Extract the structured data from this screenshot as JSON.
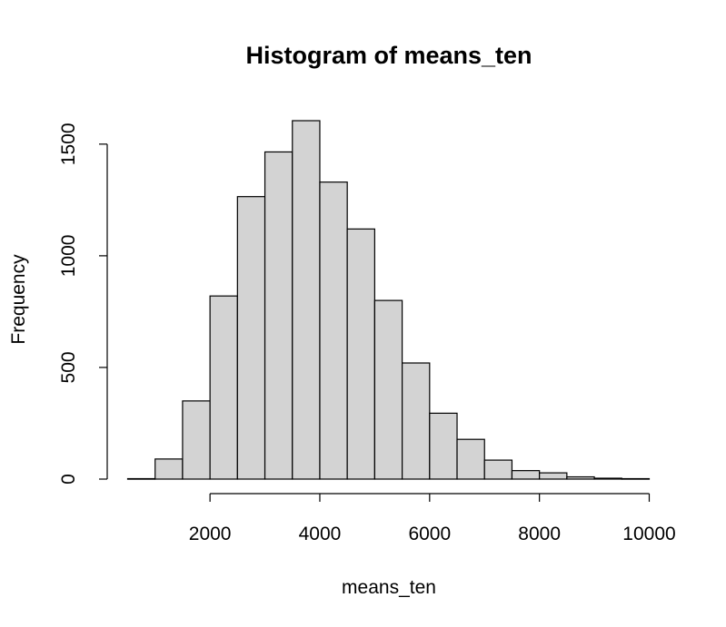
{
  "chart_data": {
    "type": "bar",
    "title": "Histogram of means_ten",
    "xlabel": "means_ten",
    "ylabel": "Frequency",
    "bin_width": 500,
    "bin_starts": [
      500,
      1000,
      1500,
      2000,
      2500,
      3000,
      3500,
      4000,
      4500,
      5000,
      5500,
      6000,
      6500,
      7000,
      7500,
      8000,
      8500,
      9000,
      9500
    ],
    "values": [
      2,
      90,
      350,
      820,
      1265,
      1465,
      1605,
      1330,
      1120,
      800,
      520,
      295,
      178,
      85,
      38,
      28,
      10,
      4,
      2
    ],
    "xticks": [
      2000,
      4000,
      6000,
      8000,
      10000
    ],
    "xtick_labels": [
      "2000",
      "4000",
      "6000",
      "8000",
      "10000"
    ],
    "yticks": [
      0,
      500,
      1000,
      1500
    ],
    "ytick_labels": [
      "0",
      "500",
      "1000",
      "1500"
    ],
    "xlim": [
      500,
      10000
    ],
    "ylim": [
      0,
      1605
    ],
    "grid": false,
    "colors": {
      "bar_fill": "#d3d3d3",
      "bar_stroke": "#000000"
    }
  }
}
